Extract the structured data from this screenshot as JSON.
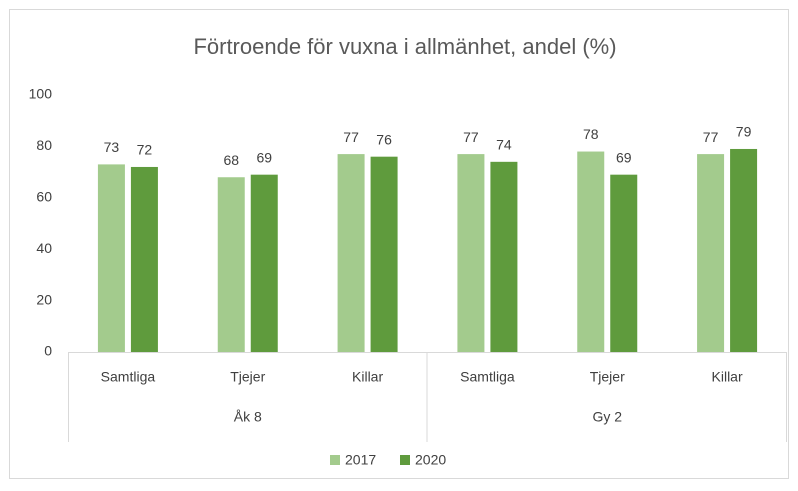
{
  "chart_data": {
    "type": "bar",
    "title": "Förtroende för vuxna i allmänhet, andel (%)",
    "groups": [
      {
        "name": "Åk 8",
        "categories": [
          "Samtliga",
          "Tjejer",
          "Killar"
        ]
      },
      {
        "name": "Gy 2",
        "categories": [
          "Samtliga",
          "Tjejer",
          "Killar"
        ]
      }
    ],
    "series": [
      {
        "name": "2017",
        "color": "#a3cb8d",
        "values": [
          73,
          68,
          77,
          77,
          78,
          77
        ]
      },
      {
        "name": "2020",
        "color": "#5f9b3d",
        "values": [
          72,
          69,
          76,
          74,
          69,
          79
        ]
      }
    ],
    "ylim": [
      0,
      100
    ],
    "yticks": [
      0,
      20,
      40,
      60,
      80,
      100
    ],
    "grid": false,
    "legend": "bottom"
  }
}
